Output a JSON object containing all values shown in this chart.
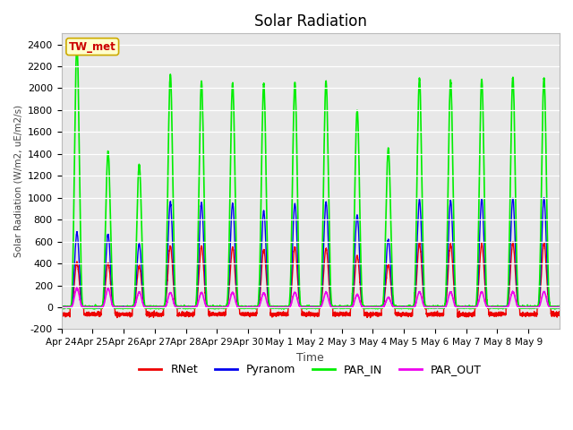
{
  "title": "Solar Radiation",
  "ylabel": "Solar Radiation (W/m2, uE/m2/s)",
  "xlabel": "Time",
  "ylim": [
    -200,
    2500
  ],
  "yticks": [
    -200,
    0,
    200,
    400,
    600,
    800,
    1000,
    1200,
    1400,
    1600,
    1800,
    2000,
    2200,
    2400
  ],
  "annotation_text": "TW_met",
  "annotation_color": "#cc0000",
  "annotation_bg": "#ffffcc",
  "annotation_border": "#ccaa00",
  "fig_color": "#ffffff",
  "plot_bg": "#e8e8e8",
  "grid_color": "#ffffff",
  "colors": {
    "RNet": "#ee0000",
    "Pyranom": "#0000ee",
    "PAR_IN": "#00ee00",
    "PAR_OUT": "#ee00ee"
  },
  "line_widths": {
    "RNet": 1.0,
    "Pyranom": 1.0,
    "PAR_IN": 1.2,
    "PAR_OUT": 1.2
  },
  "x_tick_labels": [
    "Apr 24",
    "Apr 25",
    "Apr 26",
    "Apr 27",
    "Apr 28",
    "Apr 29",
    "Apr 30",
    "May 1",
    "May 2",
    "May 3",
    "May 4",
    "May 5",
    "May 6",
    "May 7",
    "May 8",
    "May 9"
  ],
  "num_days": 16,
  "samples_per_day": 288,
  "day_peaks": {
    "PAR_IN": [
      2400,
      1420,
      1300,
      2120,
      2060,
      2050,
      2040,
      2050,
      2060,
      1800,
      1450,
      2090,
      2070,
      2080,
      2100,
      2090
    ],
    "Pyranom": [
      680,
      665,
      580,
      960,
      950,
      945,
      880,
      945,
      960,
      840,
      620,
      980,
      975,
      990,
      995,
      995
    ],
    "RNet": [
      410,
      400,
      375,
      560,
      555,
      545,
      520,
      545,
      535,
      470,
      385,
      580,
      575,
      575,
      585,
      585
    ],
    "PAR_OUT": [
      175,
      170,
      140,
      135,
      135,
      135,
      130,
      135,
      135,
      115,
      90,
      140,
      140,
      140,
      142,
      142
    ]
  },
  "night_rnet": -65,
  "day_start": 0.28,
  "day_end": 0.72,
  "peak_sharpness": 3.5
}
